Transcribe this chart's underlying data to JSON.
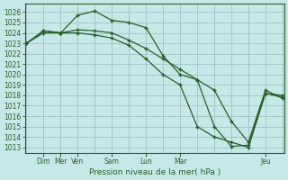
{
  "background_color": "#c8e8e8",
  "grid_color": "#99bbbb",
  "line_color": "#2a5c2a",
  "xlabel": "Pression niveau de la mer( hPa )",
  "ylim": [
    1012.5,
    1026.8
  ],
  "yticks": [
    1013,
    1014,
    1015,
    1016,
    1017,
    1018,
    1019,
    1020,
    1021,
    1022,
    1023,
    1024,
    1025,
    1026
  ],
  "xlim": [
    -0.05,
    7.55
  ],
  "day_tick_positions": [
    0.5,
    1.0,
    1.5,
    2.5,
    3.5,
    4.5,
    7.0
  ],
  "day_tick_labels": [
    "Dim",
    "Mer",
    "Ven",
    "Sam",
    "Lun",
    "Mar",
    "Jeu"
  ],
  "x_positions": [
    0.0,
    0.5,
    1.0,
    1.5,
    2.0,
    2.5,
    3.0,
    3.5,
    4.0,
    4.5,
    5.0,
    5.5,
    6.0,
    6.5,
    7.0,
    7.5
  ],
  "series": [
    [
      1023.0,
      1024.2,
      1024.0,
      1025.7,
      1026.1,
      1025.2,
      1025.0,
      1024.5,
      1021.8,
      1020.0,
      1019.5,
      1015.0,
      1013.1,
      1013.2,
      1018.2,
      1017.8
    ],
    [
      1023.0,
      1024.2,
      1024.0,
      1024.3,
      1024.2,
      1024.0,
      1023.3,
      1022.5,
      1021.5,
      1020.5,
      1019.5,
      1018.5,
      1015.5,
      1013.5,
      1018.5,
      1017.7
    ],
    [
      1023.0,
      1024.0,
      1024.0,
      1024.0,
      1023.8,
      1023.5,
      1022.8,
      1021.5,
      1020.0,
      1019.0,
      1015.0,
      1014.0,
      1013.5,
      1013.0,
      1018.2,
      1018.0
    ]
  ]
}
